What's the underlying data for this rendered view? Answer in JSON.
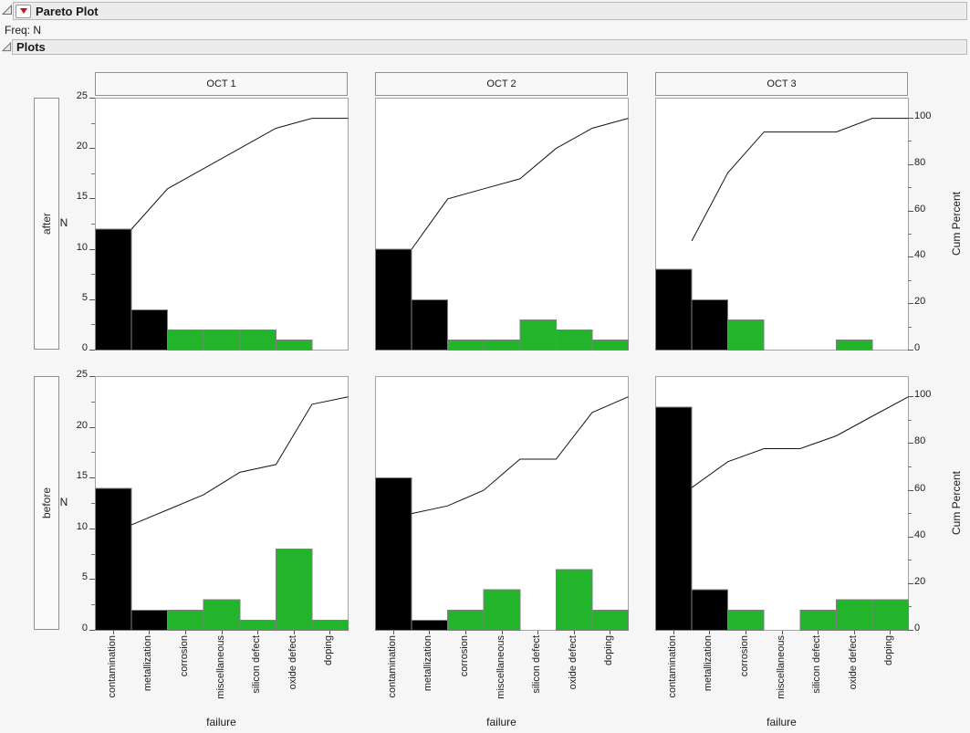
{
  "header": {
    "title": "Pareto Plot",
    "freq": "Freq: N",
    "disclosure_state": "open",
    "red_triangle_color": "#cc1414"
  },
  "plots_section": {
    "title": "Plots"
  },
  "axes": {
    "ylabel_left": "N",
    "ylabel_right": "Cum Percent",
    "xlabel": "failure",
    "ylim_left": [
      0,
      25
    ],
    "ylim_right": [
      0,
      100
    ],
    "left_ticks": [
      0,
      5,
      10,
      15,
      20,
      25
    ],
    "right_ticks": [
      0,
      20,
      40,
      60,
      80,
      100
    ],
    "pct100_equals_n": 23
  },
  "chart_data": {
    "type": "bar",
    "title": "Pareto Plot",
    "xlabel": "failure",
    "ylabel_left": "N",
    "ylabel_right": "Cum Percent",
    "row_groups": [
      "after",
      "before"
    ],
    "col_groups": [
      "OCT 1",
      "OCT 2",
      "OCT 3"
    ],
    "x_categories": [
      "contamination",
      "metallization",
      "corrosion",
      "miscellaneous",
      "silicon defect",
      "oxide defect",
      "doping"
    ],
    "bar_colors": [
      "#000000",
      "#000000",
      "#22b52c",
      "#22b52c",
      "#22b52c",
      "#22b52c",
      "#22b52c"
    ],
    "line_color": "#141414",
    "grid": false,
    "cells": [
      {
        "row": "after",
        "col": "OCT 1",
        "values": [
          12,
          4,
          2,
          2,
          2,
          1,
          0
        ],
        "total": 23,
        "cum_percent": [
          52.2,
          69.6,
          78.3,
          87.0,
          95.7,
          100,
          100
        ]
      },
      {
        "row": "after",
        "col": "OCT 2",
        "values": [
          10,
          5,
          1,
          1,
          3,
          2,
          1
        ],
        "total": 23,
        "cum_percent": [
          43.5,
          65.2,
          69.6,
          73.9,
          87.0,
          95.7,
          100
        ]
      },
      {
        "row": "after",
        "col": "OCT 3",
        "values": [
          8,
          5,
          3,
          0,
          0,
          1,
          0
        ],
        "total": 17,
        "cum_percent": [
          47.1,
          76.5,
          94.1,
          94.1,
          94.1,
          100,
          100
        ]
      },
      {
        "row": "before",
        "col": "OCT 1",
        "values": [
          14,
          2,
          2,
          3,
          1,
          8,
          1
        ],
        "total": 31,
        "cum_percent": [
          45.2,
          51.6,
          58.1,
          67.7,
          71.0,
          96.8,
          100
        ]
      },
      {
        "row": "before",
        "col": "OCT 2",
        "values": [
          15,
          1,
          2,
          4,
          0,
          6,
          2
        ],
        "total": 30,
        "cum_percent": [
          50.0,
          53.3,
          60.0,
          73.3,
          73.3,
          93.3,
          100
        ]
      },
      {
        "row": "before",
        "col": "OCT 3",
        "values": [
          22,
          4,
          2,
          0,
          2,
          3,
          3
        ],
        "total": 36,
        "cum_percent": [
          61.1,
          72.2,
          77.8,
          77.8,
          83.3,
          91.7,
          100
        ]
      }
    ]
  }
}
